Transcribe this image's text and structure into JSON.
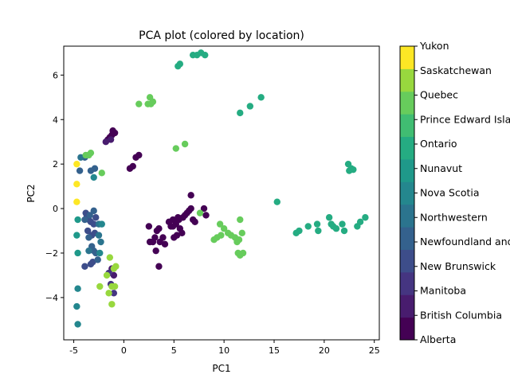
{
  "chart_data": {
    "type": "scatter",
    "title": "PCA plot (colored by location)",
    "xlabel": "PC1",
    "ylabel": "PC2",
    "xlim": [
      -6,
      25.5
    ],
    "ylim": [
      -5.9,
      7.3
    ],
    "xticks": [
      -5,
      0,
      5,
      10,
      15,
      20,
      25
    ],
    "yticks": [
      -4,
      -2,
      0,
      2,
      4,
      6
    ],
    "grid": false,
    "legend": "colorbar-right",
    "categories": [
      "Alberta",
      "British Columbia",
      "Manitoba",
      "New Brunswick",
      "Newfoundland and Labrador",
      "Northwestern",
      "Nova Scotia",
      "Nunavut",
      "Ontario",
      "Prince Edward Island",
      "Quebec",
      "Saskatchewan",
      "Yukon"
    ],
    "colors": [
      "#440154",
      "#481c6e",
      "#453581",
      "#3d4d8a",
      "#34618d",
      "#2b748e",
      "#24878e",
      "#1f998a",
      "#25ac82",
      "#40bd72",
      "#67cc5c",
      "#98d83e",
      "#fde725"
    ],
    "series": [
      {
        "category": "Alberta",
        "points": [
          [
            -1.6,
            3.1
          ],
          [
            -1.4,
            3.2
          ],
          [
            -1.2,
            3.3
          ],
          [
            -0.9,
            3.4
          ],
          [
            -1.1,
            3.5
          ],
          [
            0.6,
            1.8
          ],
          [
            0.9,
            1.9
          ],
          [
            1.2,
            2.3
          ],
          [
            1.5,
            2.4
          ],
          [
            2.5,
            -0.8
          ],
          [
            2.6,
            -1.5
          ],
          [
            2.9,
            -1.5
          ],
          [
            3.1,
            -1.3
          ],
          [
            3.3,
            -1.0
          ],
          [
            3.5,
            -0.9
          ],
          [
            3.2,
            -1.9
          ],
          [
            3.6,
            -1.5
          ],
          [
            3.9,
            -1.3
          ],
          [
            4.1,
            -1.6
          ],
          [
            3.5,
            -2.6
          ],
          [
            4.5,
            -0.6
          ],
          [
            4.7,
            -0.8
          ],
          [
            4.9,
            -0.5
          ],
          [
            5.2,
            -0.7
          ],
          [
            5.4,
            -0.4
          ],
          [
            5.6,
            -0.9
          ],
          [
            5.0,
            -1.3
          ],
          [
            5.3,
            -1.2
          ],
          [
            5.8,
            -1.1
          ],
          [
            5.9,
            -0.4
          ],
          [
            6.1,
            -0.3
          ],
          [
            6.3,
            -0.2
          ],
          [
            6.5,
            -0.1
          ],
          [
            6.7,
            0.0
          ],
          [
            6.9,
            -0.5
          ],
          [
            7.1,
            -0.6
          ],
          [
            6.7,
            0.6
          ],
          [
            8.0,
            0.0
          ],
          [
            8.2,
            -0.3
          ],
          [
            5.5,
            -0.5
          ],
          [
            4.9,
            -0.8
          ]
        ]
      },
      {
        "category": "British Columbia",
        "points": [
          [
            -1.8,
            3.0
          ],
          [
            -1.3,
            3.1
          ],
          [
            -1.0,
            -3.0
          ],
          [
            -1.2,
            -2.7
          ]
        ]
      },
      {
        "category": "Manitoba",
        "points": [
          [
            -1.5,
            -2.9
          ],
          [
            -1.0,
            -3.8
          ],
          [
            -1.3,
            -3.4
          ]
        ]
      },
      {
        "category": "New Brunswick",
        "points": [
          [
            -3.7,
            -0.3
          ],
          [
            -3.5,
            -0.5
          ],
          [
            -3.3,
            -0.6
          ],
          [
            -3.0,
            -0.7
          ],
          [
            -2.8,
            -0.4
          ],
          [
            -3.6,
            -1.0
          ],
          [
            -3.2,
            -1.2
          ],
          [
            -2.9,
            -1.1
          ],
          [
            -3.9,
            -2.6
          ],
          [
            -3.3,
            -2.5
          ],
          [
            -3.1,
            -2.4
          ],
          [
            -3.8,
            -0.2
          ]
        ]
      },
      {
        "category": "Newfoundland and Labrador",
        "points": [
          [
            -4.4,
            1.7
          ],
          [
            -3.9,
            -0.5
          ],
          [
            -3.4,
            -0.3
          ],
          [
            -3.0,
            -0.1
          ],
          [
            -3.5,
            -1.3
          ],
          [
            -3.0,
            -1.9
          ],
          [
            -2.6,
            -2.3
          ],
          [
            -2.8,
            -2.0
          ],
          [
            -3.2,
            -1.7
          ],
          [
            -3.3,
            1.7
          ],
          [
            -2.9,
            1.8
          ],
          [
            -3.9,
            2.3
          ]
        ]
      },
      {
        "category": "Northwestern",
        "points": [
          [
            -4.3,
            2.3
          ],
          [
            -2.5,
            -0.7
          ],
          [
            -2.3,
            -1.5
          ],
          [
            -2.5,
            -1.2
          ],
          [
            -3.5,
            -1.9
          ]
        ]
      },
      {
        "category": "Nova Scotia",
        "points": [
          [
            -4.6,
            -3.6
          ],
          [
            -4.7,
            -4.4
          ],
          [
            -4.6,
            -5.2
          ],
          [
            -3.0,
            1.4
          ],
          [
            -2.4,
            -2.0
          ],
          [
            -2.2,
            -0.7
          ]
        ]
      },
      {
        "category": "Nunavut",
        "points": [
          [
            -4.6,
            -0.5
          ],
          [
            -4.7,
            -1.2
          ],
          [
            -4.6,
            -2.0
          ]
        ]
      },
      {
        "category": "Ontario",
        "points": [
          [
            11.6,
            4.3
          ],
          [
            12.6,
            4.6
          ],
          [
            13.7,
            5.0
          ],
          [
            15.3,
            0.3
          ],
          [
            17.2,
            -1.1
          ],
          [
            17.5,
            -1.0
          ],
          [
            18.4,
            -0.8
          ],
          [
            19.3,
            -0.7
          ],
          [
            19.4,
            -1.0
          ],
          [
            20.5,
            -0.4
          ],
          [
            20.7,
            -0.7
          ],
          [
            20.9,
            -0.8
          ],
          [
            21.2,
            -0.9
          ],
          [
            21.8,
            -0.7
          ],
          [
            22.0,
            -1.0
          ],
          [
            22.4,
            2.0
          ],
          [
            22.5,
            1.7
          ],
          [
            22.7,
            1.8
          ],
          [
            22.9,
            1.75
          ],
          [
            23.3,
            -0.8
          ],
          [
            23.6,
            -0.6
          ],
          [
            24.1,
            -0.4
          ],
          [
            5.4,
            6.4
          ],
          [
            5.6,
            6.5
          ],
          [
            6.9,
            6.9
          ],
          [
            7.3,
            6.9
          ],
          [
            7.7,
            7.0
          ],
          [
            8.1,
            6.9
          ]
        ]
      },
      {
        "category": "Quebec",
        "points": [
          [
            1.5,
            4.7
          ],
          [
            2.4,
            4.7
          ],
          [
            2.7,
            4.7
          ],
          [
            2.6,
            5.0
          ],
          [
            2.9,
            4.8
          ],
          [
            5.2,
            2.7
          ],
          [
            6.1,
            2.9
          ],
          [
            9.0,
            -1.4
          ],
          [
            9.3,
            -1.3
          ],
          [
            9.7,
            -1.2
          ],
          [
            10.0,
            -0.9
          ],
          [
            10.4,
            -1.1
          ],
          [
            10.7,
            -1.2
          ],
          [
            11.1,
            -1.3
          ],
          [
            11.3,
            -1.5
          ],
          [
            11.5,
            -1.4
          ],
          [
            11.8,
            -1.1
          ],
          [
            11.4,
            -2.0
          ],
          [
            11.6,
            -2.1
          ],
          [
            11.9,
            -2.0
          ],
          [
            9.6,
            -0.7
          ],
          [
            11.6,
            -0.5
          ],
          [
            7.6,
            -0.2
          ],
          [
            -2.2,
            1.6
          ],
          [
            -3.8,
            2.4
          ],
          [
            -3.5,
            2.4
          ],
          [
            -3.3,
            2.5
          ]
        ]
      },
      {
        "category": "Saskatchewan",
        "points": [
          [
            -1.5,
            -3.8
          ],
          [
            -1.2,
            -4.3
          ],
          [
            -0.9,
            -3.5
          ],
          [
            -1.2,
            -3.5
          ],
          [
            -1.7,
            -3.0
          ],
          [
            -1.4,
            -2.2
          ],
          [
            -1.0,
            -2.7
          ],
          [
            -0.8,
            -2.6
          ],
          [
            -2.4,
            -3.5
          ]
        ]
      },
      {
        "category": "Yukon",
        "points": [
          [
            -4.7,
            2.0
          ],
          [
            -4.7,
            1.1
          ],
          [
            -4.7,
            0.3
          ]
        ]
      }
    ]
  }
}
